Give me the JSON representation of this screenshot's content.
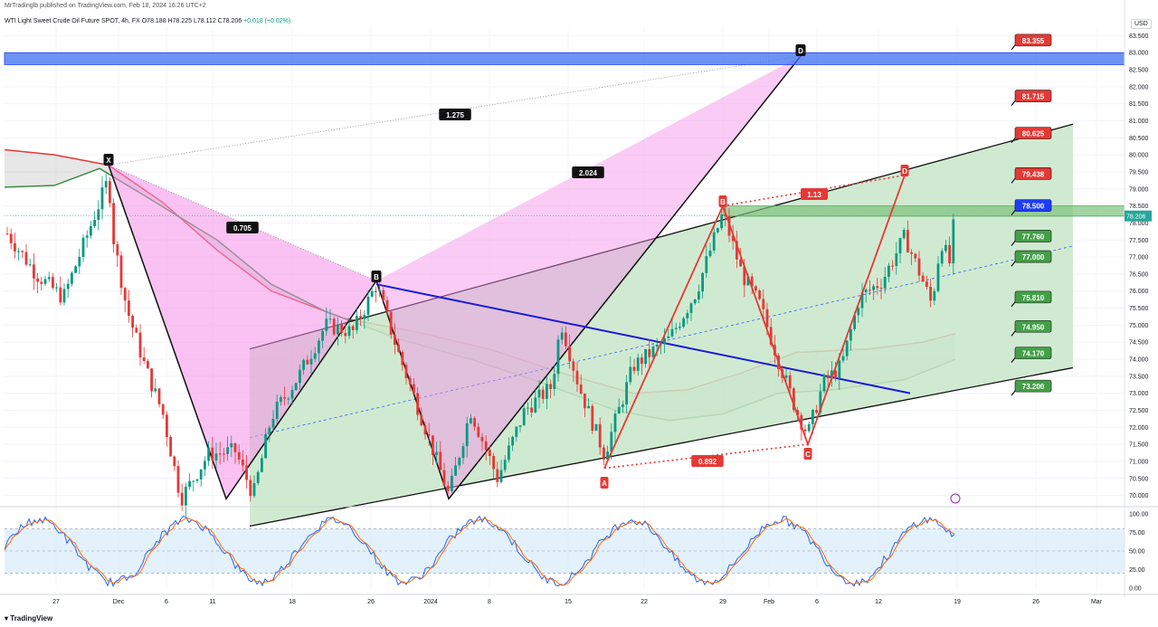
{
  "header": {
    "published": "MrTradinglb published on TradingView.com, Feb 18, 2024 16:26 UTC+2",
    "symbol": "WTI Light Sweet Crude Oil Future SPOT, 4h, FX",
    "ohlc": "O78.188 H78.225 L78.112 C78.206",
    "change": "+0.018 (+0.02%)"
  },
  "currency": "USD",
  "footer": "TradingView",
  "chart_data": {
    "type": "line",
    "price_axis": {
      "ylim": [
        69.75,
        83.75
      ],
      "ticks": [
        "83.500",
        "83.000",
        "82.500",
        "82.000",
        "81.500",
        "81.000",
        "80.500",
        "80.000",
        "79.500",
        "79.000",
        "78.500",
        "78.000",
        "77.500",
        "77.000",
        "76.500",
        "76.000",
        "75.500",
        "75.000",
        "74.500",
        "74.000",
        "73.500",
        "73.000",
        "72.500",
        "72.000",
        "71.500",
        "71.000",
        "70.500",
        "70.000"
      ],
      "last_price": "78.206"
    },
    "time_axis": {
      "labels": [
        "27",
        "Dec",
        "6",
        "11",
        "18",
        "26",
        "2024",
        "8",
        "15",
        "22",
        "29",
        "Feb",
        "6",
        "12",
        "19",
        "26",
        "Mar"
      ]
    },
    "target_levels": [
      {
        "value": 83.355,
        "label": "83.355",
        "color": "#e53935"
      },
      {
        "value": 81.715,
        "label": "81.715",
        "color": "#e53935"
      },
      {
        "value": 80.625,
        "label": "80.625",
        "color": "#e53935"
      },
      {
        "value": 79.438,
        "label": "79.438",
        "color": "#e53935"
      },
      {
        "value": 78.5,
        "label": "78.500",
        "color": "#1e3cff"
      },
      {
        "value": 77.76,
        "label": "77.760",
        "color": "#43a047"
      },
      {
        "value": 77.0,
        "label": "77.000",
        "color": "#43a047"
      },
      {
        "value": 75.81,
        "label": "75.810",
        "color": "#43a047"
      },
      {
        "value": 74.95,
        "label": "74.950",
        "color": "#43a047"
      },
      {
        "value": 74.17,
        "label": "74.170",
        "color": "#43a047"
      },
      {
        "value": 73.2,
        "label": "73.200",
        "color": "#43a047"
      }
    ],
    "harmonic_large": {
      "points": {
        "X": 79.7,
        "A": 69.9,
        "B": 76.3,
        "C": 69.9,
        "D": 82.9
      },
      "ratios": [
        "0.705",
        "2.024",
        "1.275"
      ],
      "point_labels": [
        "X",
        "B",
        "D"
      ]
    },
    "harmonic_small": {
      "points": {
        "A": 70.8,
        "B": 78.5,
        "C": 71.5,
        "D": 79.4
      },
      "ratios": [
        "0.892",
        "1.13"
      ],
      "point_labels": [
        "A",
        "B",
        "C",
        "D"
      ]
    },
    "zones": [
      {
        "name": "D-zone",
        "from": 82.65,
        "to": 83.0,
        "color": "#3c6ff0"
      },
      {
        "name": "resistance",
        "from": 78.2,
        "to": 78.5,
        "color": "#7ec07e"
      }
    ],
    "stochastic": {
      "ylim": [
        0,
        100
      ],
      "ticks": [
        "100.00",
        "75.00",
        "50.00",
        "25.00",
        "0.00"
      ],
      "band": [
        20,
        80
      ]
    }
  }
}
